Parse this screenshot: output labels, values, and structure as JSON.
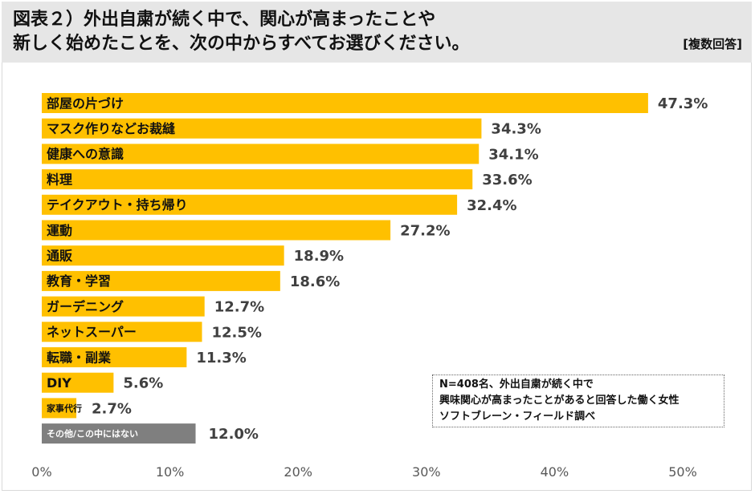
{
  "header": {
    "title_line1": "図表２）外出自粛が続く中で、関心が高まったことや",
    "title_line2": "新しく始めたことを、次の中からすべてお選びください。",
    "answer_type": "[複数回答]"
  },
  "note": {
    "line1": "N=408名、外出自粛が続く中で",
    "line2": "興味関心が高まったことがあると回答した働く女性",
    "line3": "ソフトブレーン・フィールド調べ"
  },
  "colors": {
    "bar": "#ffc000",
    "bar_other": "#7f7f7f",
    "header_bg": "#e6e6e6"
  },
  "chart_data": {
    "type": "bar",
    "orientation": "horizontal",
    "categories": [
      "部屋の片づけ",
      "マスク作りなどお裁縫",
      "健康への意識",
      "料理",
      "テイクアウト・持ち帰り",
      "運動",
      "通販",
      "教育・学習",
      "ガーデニング",
      "ネットスーパー",
      "転職・副業",
      "DIY",
      "家事代行",
      "その他/この中にはない"
    ],
    "values": [
      47.3,
      34.3,
      34.1,
      33.6,
      32.4,
      27.2,
      18.9,
      18.6,
      12.7,
      12.5,
      11.3,
      5.6,
      2.7,
      12.0
    ],
    "value_labels": [
      "47.3%",
      "34.3%",
      "34.1%",
      "33.6%",
      "32.4%",
      "27.2%",
      "18.9%",
      "18.6%",
      "12.7%",
      "12.5%",
      "11.3%",
      "5.6%",
      "2.7%",
      "12.0%"
    ],
    "xlim": [
      0,
      50
    ],
    "xticks": [
      "0%",
      "10%",
      "20%",
      "30%",
      "40%",
      "50%"
    ],
    "grid": false,
    "title": "",
    "xlabel": "",
    "ylabel": ""
  }
}
